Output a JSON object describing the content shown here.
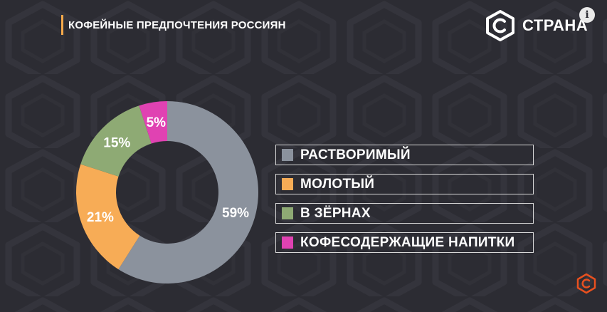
{
  "header": {
    "title": "КОФЕЙНЫЕ ПРЕДПОЧТЕНИЯ РОССИЯН"
  },
  "brand": {
    "name": "СТРАНА",
    "accent": "#e8501f"
  },
  "chart_data": {
    "type": "pie",
    "donut": true,
    "title": "КОФЕЙНЫЕ ПРЕДПОЧТЕНИЯ РОССИЯН",
    "legend_position": "right",
    "slices": [
      {
        "label": "РАСТВОРИМЫЙ",
        "value": 59,
        "value_label": "59%",
        "color": "#8b929d"
      },
      {
        "label": "МОЛОТЫЙ",
        "value": 21,
        "value_label": "21%",
        "color": "#f7ac56"
      },
      {
        "label": "В ЗЁРНАХ",
        "value": 15,
        "value_label": "15%",
        "color": "#8eaa74"
      },
      {
        "label": "КОФЕСОДЕРЖАЩИЕ НАПИТКИ",
        "value": 5,
        "value_label": "5%",
        "color": "#e042b2"
      }
    ]
  }
}
